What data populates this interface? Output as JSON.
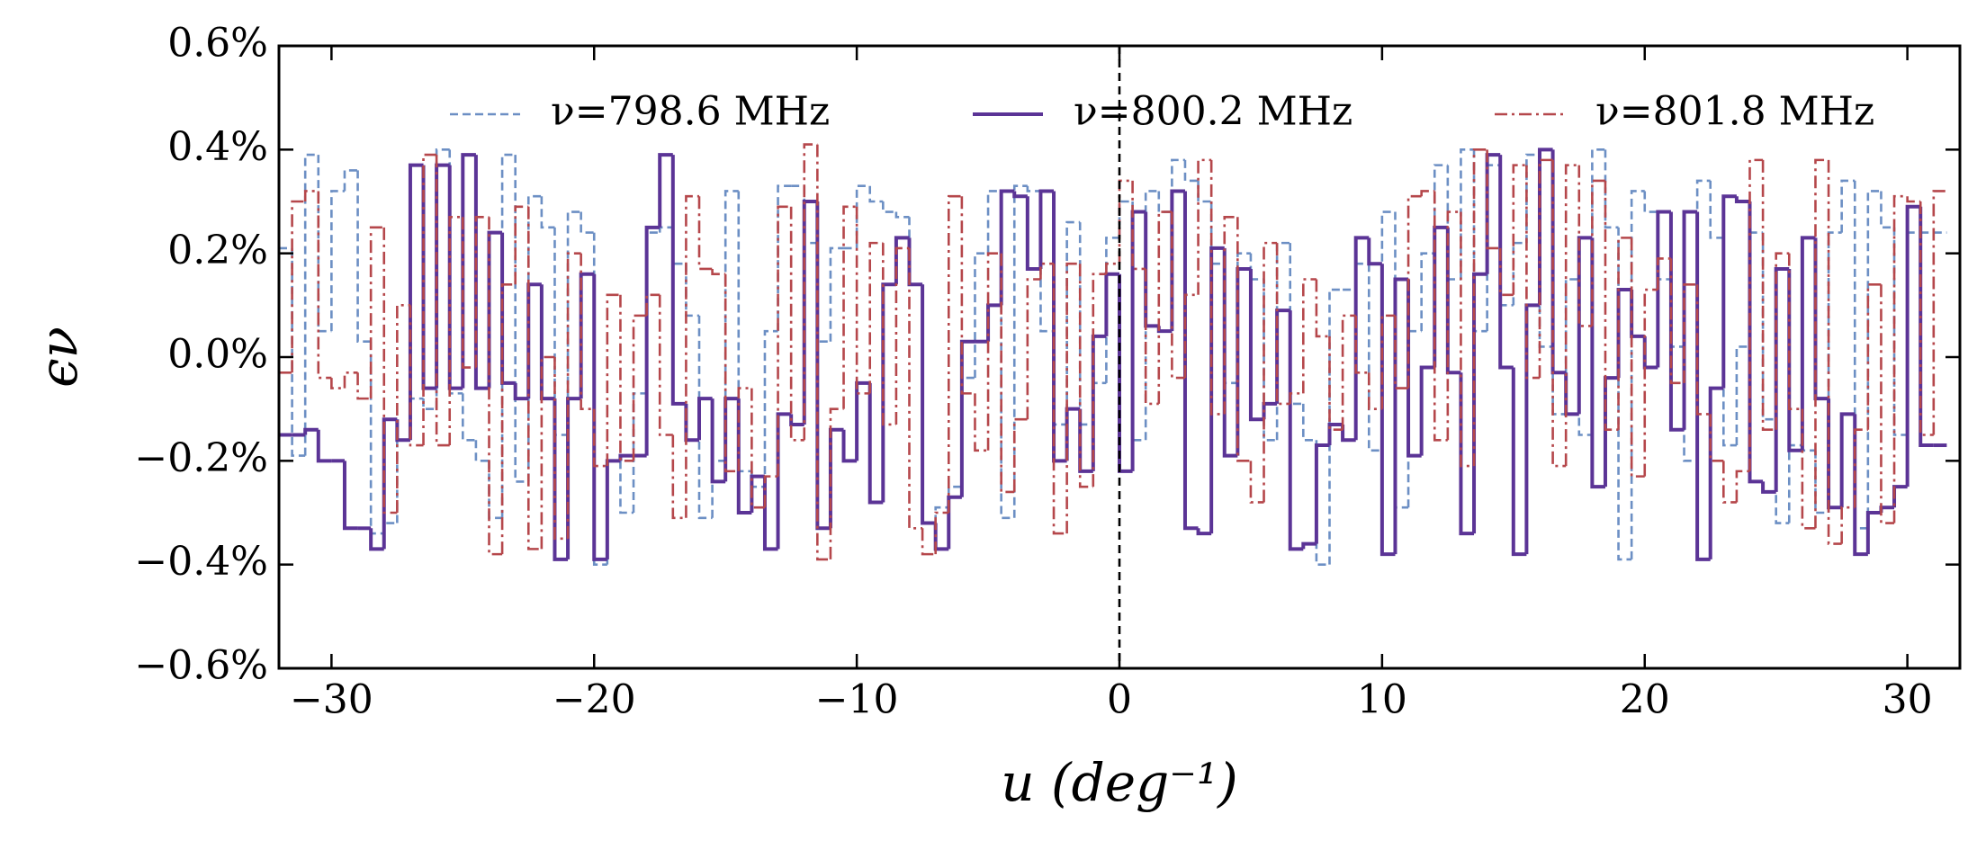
{
  "chart_data": {
    "type": "line",
    "x_label": "u (deg⁻¹)",
    "y_label": "ϵν",
    "xlim": [
      -32,
      32
    ],
    "ylim": [
      -0.6,
      0.6
    ],
    "xticks": [
      {
        "value": -30,
        "label": "−30"
      },
      {
        "value": -20,
        "label": "−20"
      },
      {
        "value": -10,
        "label": "−10"
      },
      0,
      10,
      20,
      30
    ],
    "yticks": [
      {
        "value": -0.6,
        "label": "−0.6%"
      },
      {
        "value": -0.4,
        "label": "−0.4%"
      },
      {
        "value": -0.2,
        "label": "−0.2%"
      },
      {
        "value": 0,
        "label": "0.0%"
      },
      {
        "value": 0.2,
        "label": "0.2%"
      },
      {
        "value": 0.4,
        "label": "0.4%"
      },
      {
        "value": 0.6,
        "label": "0.6%"
      }
    ],
    "vline": 0,
    "legend": "upper center",
    "x": [
      -32,
      -31.5,
      -31,
      -30.5,
      -30,
      -29.5,
      -29,
      -28.5,
      -28,
      -27.5,
      -27,
      -26.5,
      -26,
      -25.5,
      -25,
      -24.5,
      -24,
      -23.5,
      -23,
      -22.5,
      -22,
      -21.5,
      -21,
      -20.5,
      -20,
      -19.5,
      -19,
      -18.5,
      -18,
      -17.5,
      -17,
      -16.5,
      -16,
      -15.5,
      -15,
      -14.5,
      -14,
      -13.5,
      -13,
      -12.5,
      -12,
      -11.5,
      -11,
      -10.5,
      -10,
      -9.5,
      -9,
      -8.5,
      -8,
      -7.5,
      -7,
      -6.5,
      -6,
      -5.5,
      -5,
      -4.5,
      -4,
      -3.5,
      -3,
      -2.5,
      -2,
      -1.5,
      -1,
      -0.5,
      0,
      0.5,
      1,
      1.5,
      2,
      2.5,
      3,
      3.5,
      4,
      4.5,
      5,
      5.5,
      6,
      6.5,
      7,
      7.5,
      8,
      8.5,
      9,
      9.5,
      10,
      10.5,
      11,
      11.5,
      12,
      12.5,
      13,
      13.5,
      14,
      14.5,
      15,
      15.5,
      16,
      16.5,
      17,
      17.5,
      18,
      18.5,
      19,
      19.5,
      20,
      20.5,
      21,
      21.5,
      22,
      22.5,
      23,
      23.5,
      24,
      24.5,
      25,
      25.5,
      26,
      26.5,
      27,
      27.5,
      28,
      28.5,
      29,
      29.5,
      30,
      30.5,
      31
    ],
    "series": [
      {
        "name": "ν=798.6 MHz",
        "color": "#6c8fc4",
        "style": "dashed",
        "values": [
          0.21,
          -0.19,
          0.39,
          0.05,
          0.32,
          0.36,
          0.03,
          -0.34,
          -0.32,
          -0.16,
          -0.08,
          -0.1,
          0.4,
          -0.07,
          -0.16,
          -0.2,
          -0.31,
          0.39,
          -0.24,
          0.31,
          0.25,
          -0.15,
          0.28,
          0.24,
          -0.4,
          -0.2,
          -0.3,
          -0.07,
          0.24,
          0.25,
          0.18,
          0.08,
          -0.31,
          -0.2,
          0.32,
          -0.22,
          -0.25,
          0.05,
          0.33,
          0.33,
          0.22,
          0.03,
          0.21,
          0.21,
          0.33,
          0.3,
          0.28,
          0.27,
          0.14,
          -0.32,
          -0.29,
          -0.25,
          -0.04,
          0.2,
          0.32,
          -0.31,
          0.33,
          0.32,
          0.05,
          -0.13,
          0.26,
          -0.13,
          -0.05,
          0.23,
          0.3,
          -0.16,
          0.32,
          0.28,
          0.38,
          0.34,
          0.3,
          0.18,
          -0.05,
          0.2,
          0.15,
          -0.16,
          0.22,
          -0.09,
          -0.16,
          -0.4,
          0.13,
          0.13,
          0.18,
          -0.18,
          0.28,
          -0.29,
          0.05,
          0.2,
          0.37,
          0.15,
          0.4,
          0.05,
          0.37,
          0.1,
          0.22,
          0.39,
          0.02,
          -0.11,
          0.15,
          -0.15,
          0.4,
          0.25,
          -0.39,
          0.32,
          0.28,
          0.15,
          0.02,
          -0.2,
          0.34,
          0.23,
          -0.17,
          0.02,
          0.24,
          -0.12,
          -0.32,
          -0.17,
          -0.18,
          -0.3,
          0.24,
          0.34,
          -0.33,
          0.32,
          0.25,
          -0.15,
          0.24,
          0.24,
          0.24
        ]
      },
      {
        "name": "ν=800.2 MHz",
        "color": "#5b3496",
        "style": "solid",
        "values": [
          -0.15,
          -0.15,
          -0.14,
          -0.2,
          -0.2,
          -0.33,
          -0.33,
          -0.37,
          -0.12,
          -0.16,
          0.37,
          -0.06,
          0.37,
          -0.06,
          0.39,
          -0.06,
          0.24,
          -0.05,
          -0.08,
          0.14,
          -0.08,
          -0.39,
          -0.08,
          0.16,
          -0.39,
          -0.2,
          -0.19,
          -0.19,
          0.25,
          0.39,
          -0.09,
          -0.16,
          -0.08,
          -0.24,
          -0.08,
          -0.3,
          -0.23,
          -0.37,
          -0.11,
          -0.13,
          0.3,
          -0.33,
          -0.14,
          -0.2,
          -0.05,
          -0.28,
          0.14,
          0.23,
          0.14,
          -0.32,
          -0.37,
          -0.27,
          0.03,
          0.03,
          0.1,
          0.32,
          0.31,
          0.17,
          0.32,
          -0.2,
          -0.1,
          -0.22,
          0.04,
          0.16,
          -0.22,
          0.28,
          0.06,
          0.05,
          0.32,
          -0.33,
          -0.34,
          0.21,
          -0.19,
          0.17,
          -0.12,
          -0.09,
          0.09,
          -0.37,
          -0.36,
          -0.17,
          -0.13,
          -0.16,
          0.23,
          0.18,
          -0.38,
          0.15,
          -0.19,
          -0.02,
          0.25,
          -0.03,
          -0.34,
          0.16,
          0.39,
          -0.02,
          -0.38,
          0.1,
          0.4,
          -0.03,
          -0.11,
          0.23,
          -0.25,
          -0.04,
          0.13,
          0.04,
          -0.02,
          0.28,
          -0.14,
          0.28,
          -0.39,
          -0.06,
          0.31,
          0.3,
          -0.24,
          -0.26,
          0.17,
          -0.18,
          0.23,
          -0.08,
          -0.29,
          -0.11,
          -0.38,
          -0.3,
          -0.29,
          -0.25,
          0.29,
          -0.17,
          -0.17
        ]
      },
      {
        "name": "ν=801.8 MHz",
        "color": "#b5474b",
        "style": "dashdot",
        "values": [
          -0.03,
          0.3,
          0.32,
          -0.04,
          -0.06,
          -0.03,
          -0.08,
          0.25,
          -0.3,
          0.1,
          -0.17,
          0.39,
          -0.17,
          0.27,
          -0.02,
          0.27,
          -0.38,
          0.14,
          0.29,
          -0.37,
          0.0,
          -0.35,
          0.2,
          -0.1,
          -0.21,
          0.12,
          -0.2,
          0.08,
          0.12,
          -0.15,
          -0.31,
          0.31,
          0.17,
          0.16,
          -0.22,
          -0.06,
          -0.29,
          -0.23,
          0.29,
          -0.16,
          0.41,
          -0.39,
          -0.1,
          0.29,
          -0.07,
          0.22,
          -0.13,
          0.21,
          -0.33,
          -0.38,
          -0.3,
          0.31,
          -0.07,
          -0.18,
          0.2,
          -0.26,
          -0.12,
          0.15,
          0.18,
          -0.34,
          0.18,
          -0.25,
          0.16,
          0.18,
          0.34,
          0.17,
          -0.09,
          0.28,
          -0.04,
          0.12,
          0.38,
          -0.11,
          0.27,
          -0.2,
          -0.28,
          0.22,
          -0.09,
          -0.07,
          0.15,
          0.04,
          -0.14,
          0.08,
          -0.03,
          -0.1,
          0.08,
          -0.06,
          0.31,
          0.32,
          -0.16,
          0.28,
          -0.21,
          0.4,
          0.21,
          0.12,
          0.37,
          -0.04,
          0.38,
          -0.21,
          0.37,
          0.06,
          0.34,
          -0.14,
          0.23,
          -0.23,
          0.13,
          0.19,
          -0.05,
          0.14,
          -0.11,
          -0.2,
          -0.28,
          -0.22,
          0.38,
          -0.14,
          0.2,
          -0.1,
          -0.33,
          0.38,
          -0.36,
          -0.29,
          -0.14,
          0.14,
          -0.32,
          0.31,
          0.3,
          -0.15,
          0.32
        ]
      }
    ]
  }
}
